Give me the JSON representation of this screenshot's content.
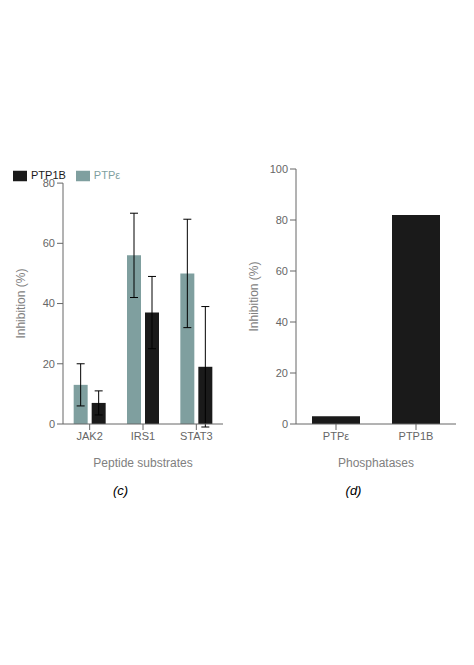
{
  "chart_data": [
    {
      "type": "bar",
      "categories": [
        "JAK2",
        "IRS1",
        "STAT3"
      ],
      "series": [
        {
          "name": "PTPε",
          "color": "#7f9f9f",
          "values": [
            13,
            56,
            50
          ],
          "errors": [
            7,
            14,
            18
          ]
        },
        {
          "name": "PTP1B",
          "color": "#1a1a1a",
          "values": [
            7,
            37,
            19
          ],
          "errors": [
            4,
            12,
            20
          ]
        }
      ],
      "xlabel": "Peptide substrates",
      "ylabel": "Inhibition (%)",
      "ylim": [
        0,
        80
      ],
      "yticks": [
        0,
        20,
        40,
        60,
        80
      ],
      "grid": false,
      "legend": "upper left",
      "annotations": [
        "(c)"
      ]
    },
    {
      "type": "bar",
      "categories": [
        "PTPε",
        "PTP1B"
      ],
      "values": [
        3,
        82
      ],
      "color": "#1a1a1a",
      "xlabel": "Phosphatases",
      "ylabel": "Inhibition (%)",
      "ylim": [
        0,
        100
      ],
      "yticks": [
        0,
        20,
        40,
        60,
        80,
        100
      ],
      "grid": false,
      "annotations": [
        "(d)"
      ]
    }
  ]
}
